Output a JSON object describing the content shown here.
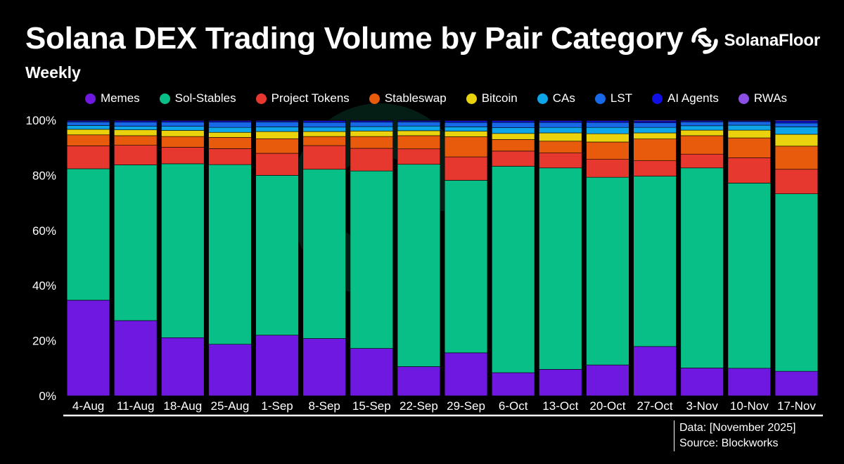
{
  "header": {
    "title": "Solana DEX Trading Volume by Pair Category",
    "subtitle": "Weekly",
    "brand": "SolanaFloor"
  },
  "footer": {
    "data_note": "Data: [November 2025]",
    "source": "Source: Blockworks"
  },
  "chart_data": {
    "type": "bar",
    "stacked": true,
    "title": "Solana DEX Trading Volume by Pair Category",
    "subtitle": "Weekly",
    "xlabel": "",
    "ylabel": "",
    "ylim": [
      0,
      100
    ],
    "yticks": [
      "0%",
      "20%",
      "40%",
      "60%",
      "80%",
      "100%"
    ],
    "legend_position": "top-center",
    "grid": false,
    "categories": [
      "4-Aug",
      "11-Aug",
      "18-Aug",
      "25-Aug",
      "1-Sep",
      "8-Sep",
      "15-Sep",
      "22-Sep",
      "29-Sep",
      "6-Oct",
      "13-Oct",
      "20-Oct",
      "27-Oct",
      "3-Nov",
      "10-Nov",
      "17-Nov"
    ],
    "series": [
      {
        "name": "Memes",
        "color": "#6e18e0",
        "values": [
          34.7,
          27.3,
          21.1,
          18.7,
          22.0,
          20.8,
          17.2,
          10.6,
          15.6,
          8.4,
          9.6,
          11.2,
          17.9,
          10.1,
          10.0,
          8.9
        ]
      },
      {
        "name": "Sol-Stables",
        "color": "#08c087",
        "values": [
          47.7,
          56.5,
          63.1,
          65.2,
          58.0,
          61.4,
          64.4,
          73.4,
          62.6,
          74.9,
          73.1,
          68.1,
          61.8,
          72.6,
          67.2,
          64.4
        ]
      },
      {
        "name": "Project Tokens",
        "color": "#e7382f",
        "values": [
          8.3,
          7.1,
          6.0,
          5.8,
          8.0,
          8.6,
          8.2,
          5.6,
          8.5,
          5.5,
          5.4,
          6.5,
          5.6,
          5.0,
          9.2,
          8.9
        ]
      },
      {
        "name": "Stableswap",
        "color": "#e85a0c",
        "values": [
          4.0,
          3.5,
          3.9,
          4.1,
          5.3,
          3.3,
          4.3,
          4.8,
          7.3,
          4.2,
          4.3,
          6.3,
          7.9,
          6.7,
          7.2,
          8.4
        ]
      },
      {
        "name": "Bitcoin",
        "color": "#ead20c",
        "values": [
          2.0,
          2.1,
          2.2,
          1.8,
          2.6,
          1.8,
          2.0,
          1.8,
          2.0,
          2.2,
          3.0,
          3.0,
          2.2,
          2.0,
          2.8,
          4.3
        ]
      },
      {
        "name": "CAs",
        "color": "#0ea6e8",
        "values": [
          1.4,
          1.3,
          1.5,
          1.8,
          1.7,
          1.6,
          1.6,
          1.7,
          1.6,
          2.1,
          2.0,
          2.3,
          2.0,
          1.6,
          1.8,
          2.7
        ]
      },
      {
        "name": "LST",
        "color": "#1769e8",
        "values": [
          1.3,
          1.5,
          1.5,
          1.9,
          1.8,
          1.7,
          1.6,
          1.5,
          1.6,
          1.9,
          1.8,
          1.8,
          1.7,
          1.4,
          1.3,
          1.4
        ]
      },
      {
        "name": "AI Agents",
        "color": "#1010e6",
        "values": [
          0.4,
          0.5,
          0.5,
          0.5,
          0.4,
          0.6,
          0.5,
          0.4,
          0.6,
          0.6,
          0.6,
          0.6,
          0.6,
          0.4,
          0.3,
          0.7
        ]
      },
      {
        "name": "RWAs",
        "color": "#8b4fe8",
        "values": [
          0.2,
          0.2,
          0.2,
          0.2,
          0.2,
          0.2,
          0.2,
          0.2,
          0.2,
          0.2,
          0.2,
          0.2,
          0.3,
          0.2,
          0.2,
          0.3
        ]
      }
    ]
  }
}
